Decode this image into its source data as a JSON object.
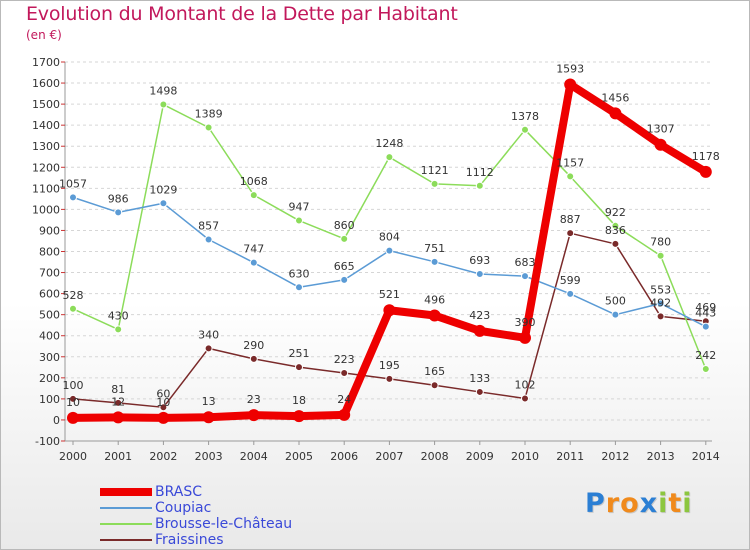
{
  "title": "Evolution du Montant de la Dette par Habitant",
  "subtitle": "(en €)",
  "logo": {
    "text": "Proxiti",
    "letters": [
      {
        "ch": "P",
        "color": "#2b7fd4"
      },
      {
        "ch": "r",
        "color": "#f08a1c"
      },
      {
        "ch": "o",
        "color": "#f08a1c"
      },
      {
        "ch": "x",
        "color": "#2b7fd4"
      },
      {
        "ch": "i",
        "color": "#8cc63f"
      },
      {
        "ch": "t",
        "color": "#f08a1c"
      },
      {
        "ch": "i",
        "color": "#8cc63f"
      }
    ]
  },
  "chart_data": {
    "type": "line",
    "title": "Evolution du Montant de la Dette par Habitant",
    "ylabel": "(en €)",
    "x": [
      2000,
      2001,
      2002,
      2003,
      2004,
      2005,
      2006,
      2007,
      2008,
      2009,
      2010,
      2011,
      2012,
      2013,
      2014
    ],
    "ylim": [
      -100,
      1700
    ],
    "yticks": [
      -100,
      0,
      100,
      200,
      300,
      400,
      500,
      600,
      700,
      800,
      900,
      1000,
      1100,
      1200,
      1300,
      1400,
      1500,
      1600,
      1700
    ],
    "grid": true,
    "legend_position": "bottom-left",
    "series": [
      {
        "name": "BRASC",
        "color": "#ee0000",
        "line_width": 8,
        "marker_r": 6,
        "values": [
          10,
          12,
          10,
          13,
          23,
          18,
          24,
          521,
          496,
          423,
          390,
          1593,
          1456,
          1307,
          1178
        ],
        "labels": [
          "10",
          "12",
          "10",
          "13",
          "23",
          "18",
          "24",
          "521",
          "496",
          "423",
          "390",
          "1593",
          "1456",
          "1307",
          "1178"
        ]
      },
      {
        "name": "Coupiac",
        "color": "#5b9bd5",
        "line_width": 1.5,
        "marker_r": 3.5,
        "values": [
          1057,
          986,
          1029,
          857,
          747,
          630,
          665,
          804,
          751,
          693,
          683,
          599,
          500,
          553,
          443
        ],
        "labels": [
          "1057",
          "986",
          "1029",
          "857",
          "747",
          "630",
          "665",
          "804",
          "751",
          "693",
          "683",
          "599",
          "500",
          "553",
          "443"
        ]
      },
      {
        "name": "Brousse-le-Château",
        "color": "#8cdc5a",
        "line_width": 1.5,
        "marker_r": 3.5,
        "values": [
          528,
          430,
          1498,
          1389,
          1068,
          947,
          860,
          1248,
          1121,
          1112,
          1378,
          1157,
          922,
          780,
          242
        ],
        "labels": [
          "528",
          "430",
          "1498",
          "1389",
          "1068",
          "947",
          "860",
          "1248",
          "1121",
          "1112",
          "1378",
          "1157",
          "922",
          "780",
          "242"
        ]
      },
      {
        "name": "Fraissines",
        "color": "#7a2a2a",
        "line_width": 1.5,
        "marker_r": 3.5,
        "values": [
          100,
          81,
          60,
          340,
          290,
          251,
          223,
          195,
          165,
          133,
          102,
          887,
          836,
          492,
          469
        ],
        "labels": [
          "100",
          "81",
          "60",
          "340",
          "290",
          "251",
          "223",
          "195",
          "165",
          "133",
          "102",
          "887",
          "836",
          "492",
          "469"
        ]
      }
    ]
  }
}
